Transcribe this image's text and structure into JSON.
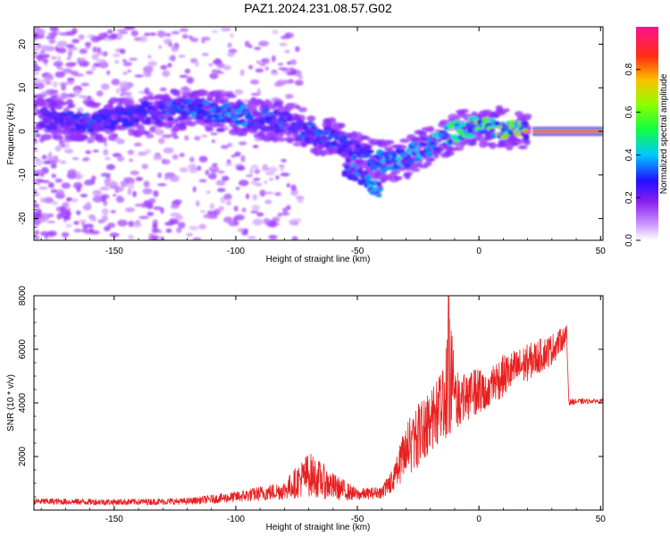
{
  "figure": {
    "title": "PAZ1.2024.231.08.57.G02"
  },
  "chart_data": [
    {
      "type": "heatmap",
      "title": "PAZ1.2024.231.08.57.G02",
      "xlabel": "Height of straight line (km)",
      "ylabel": "Frequency (Hz)",
      "xlim": [
        -183,
        51
      ],
      "ylim": [
        -25,
        24
      ],
      "x_ticks": [
        "-150",
        "-100",
        "-50",
        "0",
        "50"
      ],
      "y_ticks": [
        "-20",
        "-10",
        "0",
        "10",
        "20"
      ],
      "colorbar": {
        "label": "Normalized spectral amplitude",
        "range": [
          0.0,
          1.0
        ],
        "ticks": [
          "0.0",
          "0.2",
          "0.4",
          "0.6",
          "0.8"
        ],
        "colormap": [
          "#ffffff",
          "#9a30ff",
          "#3020ff",
          "#00d0ff",
          "#30ff30",
          "#ffb000",
          "#ff2020",
          "#ff10a0"
        ]
      },
      "ridge": {
        "x": [
          -180,
          -160,
          -140,
          -120,
          -100,
          -80,
          -60,
          -50,
          -40,
          -30,
          -20,
          -10,
          0,
          10,
          20,
          30,
          50
        ],
        "frequency": [
          3,
          2,
          4,
          5,
          4,
          2,
          -2,
          -5,
          -7,
          -6,
          -3,
          0,
          1,
          1,
          0,
          0,
          0
        ],
        "peak_amplitude": [
          0.2,
          0.3,
          0.25,
          0.35,
          0.35,
          0.3,
          0.3,
          0.3,
          0.35,
          0.45,
          0.4,
          0.55,
          0.6,
          0.6,
          0.75,
          0.95,
          0.95
        ]
      },
      "secondary_branch": {
        "x": [
          -55,
          -50,
          -45,
          -40
        ],
        "frequency": [
          -8,
          -10,
          -12,
          -14
        ],
        "peak_amplitude": [
          0.35,
          0.4,
          0.4,
          0.35
        ]
      }
    },
    {
      "type": "line",
      "xlabel": "Height of straight line (km)",
      "ylabel": "SNR (10 * v/v)",
      "xlim": [
        -183,
        51
      ],
      "ylim": [
        0,
        8000
      ],
      "x_ticks": [
        "-150",
        "-100",
        "-50",
        "0",
        "50"
      ],
      "y_ticks": [
        "2000",
        "4000",
        "6000",
        "8000"
      ],
      "color": "#e82020",
      "envelope": {
        "x": [
          -183,
          -150,
          -120,
          -100,
          -80,
          -70,
          -60,
          -50,
          -40,
          -35,
          -30,
          -25,
          -20,
          -15,
          -12,
          -10,
          0,
          10,
          20,
          30,
          36,
          37,
          40,
          51
        ],
        "low": [
          200,
          180,
          200,
          280,
          380,
          500,
          350,
          350,
          450,
          700,
          1200,
          1600,
          2200,
          2600,
          2800,
          3000,
          3600,
          4200,
          4800,
          5400,
          6200,
          3900,
          3950,
          4000
        ],
        "high": [
          450,
          420,
          450,
          700,
          1100,
          2200,
          1400,
          800,
          900,
          1600,
          3400,
          4000,
          4600,
          5400,
          8000,
          5200,
          5300,
          5800,
          6200,
          6600,
          6900,
          4150,
          4150,
          4150
        ]
      }
    }
  ]
}
